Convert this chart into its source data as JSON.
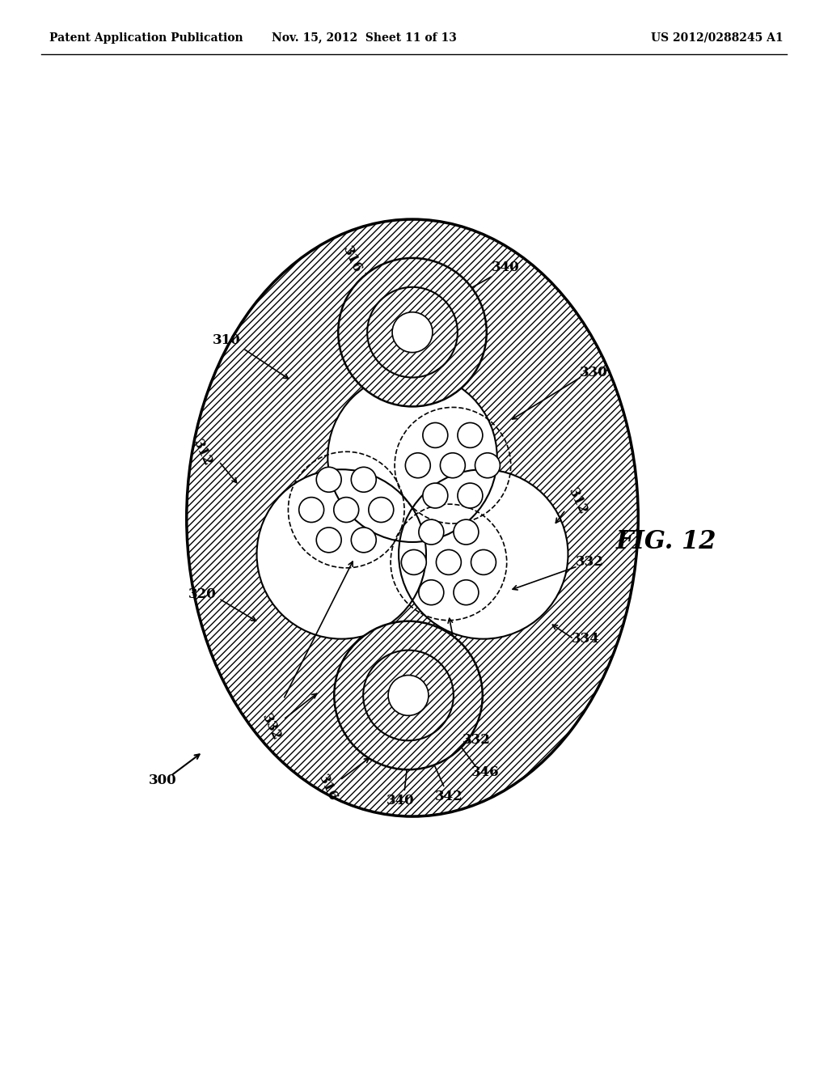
{
  "title": "FIG. 12",
  "header_left": "Patent Application Publication",
  "header_mid": "Nov. 15, 2012  Sheet 11 of 13",
  "header_right": "US 2012/0288245 A1",
  "bg_color": "#ffffff"
}
